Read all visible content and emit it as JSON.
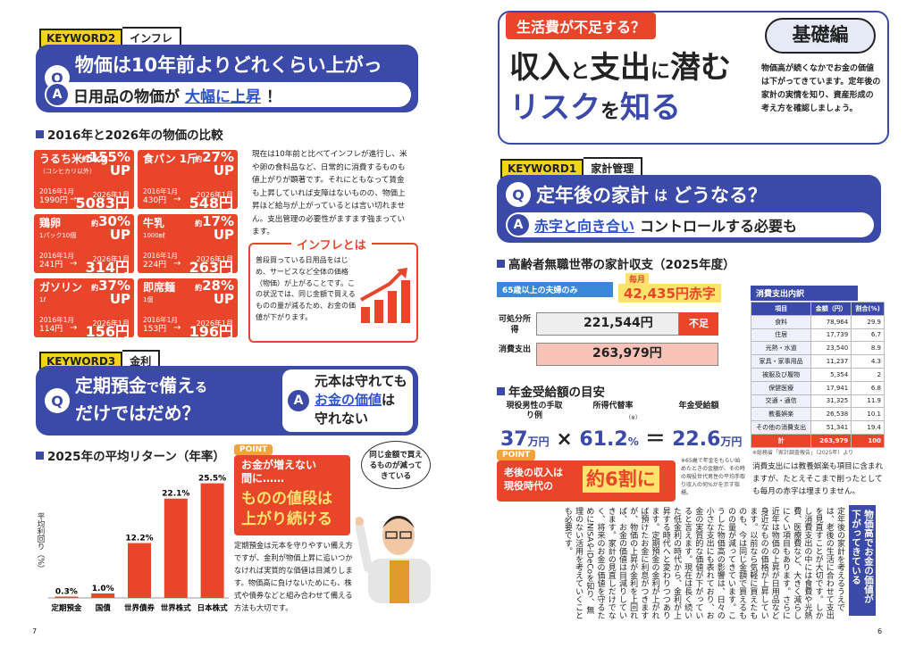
{
  "left": {
    "keyword2": {
      "a": "KEYWORD2",
      "b": "インフレ"
    },
    "q": {
      "letter": "Q",
      "text": "物価は10年前よりどれくらい上がった？"
    },
    "a": {
      "letter": "A",
      "text1": "日用品の物価が",
      "text2": "大幅に上昇",
      "text3": "！"
    },
    "compare_title": "2016年と2026年の物価の比較",
    "cards": [
      {
        "name": "うるち米 5kg",
        "sub": "（コシヒカリ以外）",
        "pct_pre": "約",
        "pct": "155%",
        "up": "UP",
        "old_label": "2016年1月",
        "old": "1990円",
        "new_label": "2026年1月",
        "new": "5083円"
      },
      {
        "name": "食パン 1斤",
        "sub": "",
        "pct_pre": "約",
        "pct": "27%",
        "up": "UP",
        "old_label": "2016年1月",
        "old": "430円",
        "new_label": "2026年1月",
        "new": "548円"
      },
      {
        "name": "鶏卵",
        "sub": "1パック10個",
        "pct_pre": "約",
        "pct": "30%",
        "up": "UP",
        "old_label": "2016年1月",
        "old": "241円",
        "new_label": "2026年1月",
        "new": "314円"
      },
      {
        "name": "牛乳",
        "sub": "1000㎖",
        "pct_pre": "約",
        "pct": "17%",
        "up": "UP",
        "old_label": "2016年1月",
        "old": "224円",
        "new_label": "2026年1月",
        "new": "263円"
      },
      {
        "name": "ガソリン",
        "sub": "1ℓ",
        "pct_pre": "約",
        "pct": "37%",
        "up": "UP",
        "old_label": "2016年1月",
        "old": "114円",
        "new_label": "2026年1月",
        "new": "156円"
      },
      {
        "name": "即席麺",
        "sub": "1個",
        "pct_pre": "約",
        "pct": "28%",
        "up": "UP",
        "old_label": "2016年1月",
        "old": "153円",
        "new_label": "2026年1月",
        "new": "196円"
      }
    ],
    "inflation_para": "現在は10年前と比べてインフレが進行し、米や卵の食料品など、日常的に消費するものも値上がりが顕著です。それにともなって賃金も上昇していれば支障はないものの、物価上昇ほど給与が上がっているとは言い切れません。支出管理の必要性がますます強まっています。",
    "inflation_box_title": "インフレとは",
    "inflation_box_text": "普段買っている日用品をはじめ、サービスなど全体の価格（物価）が上がることです。この状況では、同じ金額で買えるものの量が減るため、お金の価値が下がります。",
    "keyword3": {
      "a": "KEYWORD3",
      "b": "金利"
    },
    "q3": {
      "letter": "Q",
      "line1a": "定期預金",
      "line1b": "で",
      "line1c": "備え",
      "line1d": "る",
      "line2": "だけではだめ？"
    },
    "a3": {
      "letter": "A",
      "line1": "元本は守れても",
      "line2": "お金の価値",
      "line2b": "は",
      "line3": "守れない"
    },
    "return_title": "2025年の平均リターン（年率）",
    "return_ylabel": "平均利回り（%）",
    "point_label": "POINT",
    "point_text1": "お金が増えない",
    "point_text2": "間に……",
    "point_text3": "ものの値段は",
    "point_text4": "上がり続ける",
    "speech": "同じ金額で買えるものが減ってきている",
    "bottom_para": "定期預金は元本を守りやすい備え方ですが、金利が物価上昇に追いつかなければ実質的な価値は目減りします。物価高に負けないためにも、株式や債券などと組み合わせて備える方法も大切です。",
    "page_no": "7"
  },
  "chart_data": {
    "type": "bar",
    "title": "2025年の平均リターン（年率）",
    "ylabel": "平均利回り（%）",
    "categories": [
      "定期預金",
      "国債",
      "世界債券",
      "世界株式",
      "日本株式"
    ],
    "values": [
      0.3,
      1.0,
      12.2,
      22.1,
      25.5
    ],
    "labels": [
      "0.3%",
      "1.0%",
      "12.2%",
      "22.1%",
      "25.5%"
    ],
    "ylim": [
      0,
      27
    ],
    "color": "#e9452b"
  },
  "right": {
    "banner": "生活費が不足する？",
    "title1a": "収入",
    "title1b": "と",
    "title1c": "支出",
    "title1d": "に",
    "title1e": "潜む",
    "title2a": "リスク",
    "title2b": "を",
    "title2c": "知る",
    "basic": "基礎編",
    "intro": "物価高が続くなかでお金の価値は下がってきています。定年後の家計の実情を知り、資産形成の考え方を確認しましょう。",
    "keyword1": {
      "a": "KEYWORD1",
      "b": "家計管理"
    },
    "q1": {
      "letter": "Q",
      "a": "定年後の家計",
      "b": "は",
      "c": "どうなる？"
    },
    "a1": {
      "letter": "A",
      "a": "赤字と向き合い",
      "b": "コントロールする必要も"
    },
    "budget_title": "高齢者無職世帯の家計収支（2025年度）",
    "couple_label": "65歳以上の夫婦のみ",
    "monthly_pre": "毎月",
    "monthly": "42,435円赤字",
    "income_label": "可処分所得",
    "income": "221,544円",
    "shortage": "不足",
    "expense_label": "消費支出",
    "expense": "263,979円",
    "breakdown_title": "消費支出内訳",
    "table_head": [
      "項目",
      "金額（円）",
      "割合(%)"
    ],
    "table_rows": [
      [
        "食料",
        "78,964",
        "29.9"
      ],
      [
        "住居",
        "17,739",
        "6.7"
      ],
      [
        "光熱・水道",
        "23,540",
        "8.9"
      ],
      [
        "家具・家事用品",
        "11,237",
        "4.3"
      ],
      [
        "被服及び履物",
        "5,354",
        "2"
      ],
      [
        "保健医療",
        "17,941",
        "6.8"
      ],
      [
        "交通・通信",
        "31,325",
        "11.9"
      ],
      [
        "教養娯楽",
        "26,538",
        "10.1"
      ],
      [
        "その他の消費支出",
        "51,341",
        "19.4"
      ],
      [
        "計",
        "263,979",
        "100"
      ]
    ],
    "table_src": "※総務省「家計調査報告」（2025年）より",
    "table_note": "消費支出には教養娯楽も項目に含まれますが、たとえそこまで削ったとしても毎月の赤字は埋まりません。",
    "pension_title": "年金受給額の目安",
    "pension_labels": [
      "現役男性の手取り例",
      "所得代替率",
      "年金受給額"
    ],
    "pension_note_sup": "（※）",
    "pension_v1": "37",
    "pension_u1": "万円",
    "pension_x": "×",
    "pension_v2": "61.2",
    "pension_u2": "%",
    "pension_eq": "＝",
    "pension_v3": "22.6",
    "pension_u3": "万円",
    "point_label": "POINT",
    "point_a": "老後の収入は",
    "point_b": "現役時代の",
    "point_c": "約6割に",
    "pension_note": "※65歳で年金をもらい始めたときの金額が、その時の現役世代男性の平均手取り収入の何%かを示す指標。",
    "vbanner": "物価高でお金の価値が下がってきている",
    "vtext": "定年後の家計を考えるうえでは、老後の生活に合わせて支出を見直すことが大切です。しかし消費支出の中には食費や光熱費、医療費など、大きく減らしにくい項目もあります。さらに近年は物価の上昇が日用品など身近なものの価格が上昇しています。以前なら気軽に買えたものも、今は同じ金額で買えるものの量が減ってきています。こうした物価高の影響は、日々の小さな支出にも表れており、お金の実質的な価値が下がっていると言えます。現在は長く続いた低金利の時代から、金利が上昇する時代へと変わりつつあります。定期預金の金利が上がれば預けたお金に利息がつきますが、物価の上昇が金利を上回れば、お金の価値は目減りしていきます。家計の見直しだけでなく、将来のお金の価値を守るためにNISAやiDeCoを知り、無理のない活用を考えていくことも必要です。",
    "page_no": "6"
  }
}
